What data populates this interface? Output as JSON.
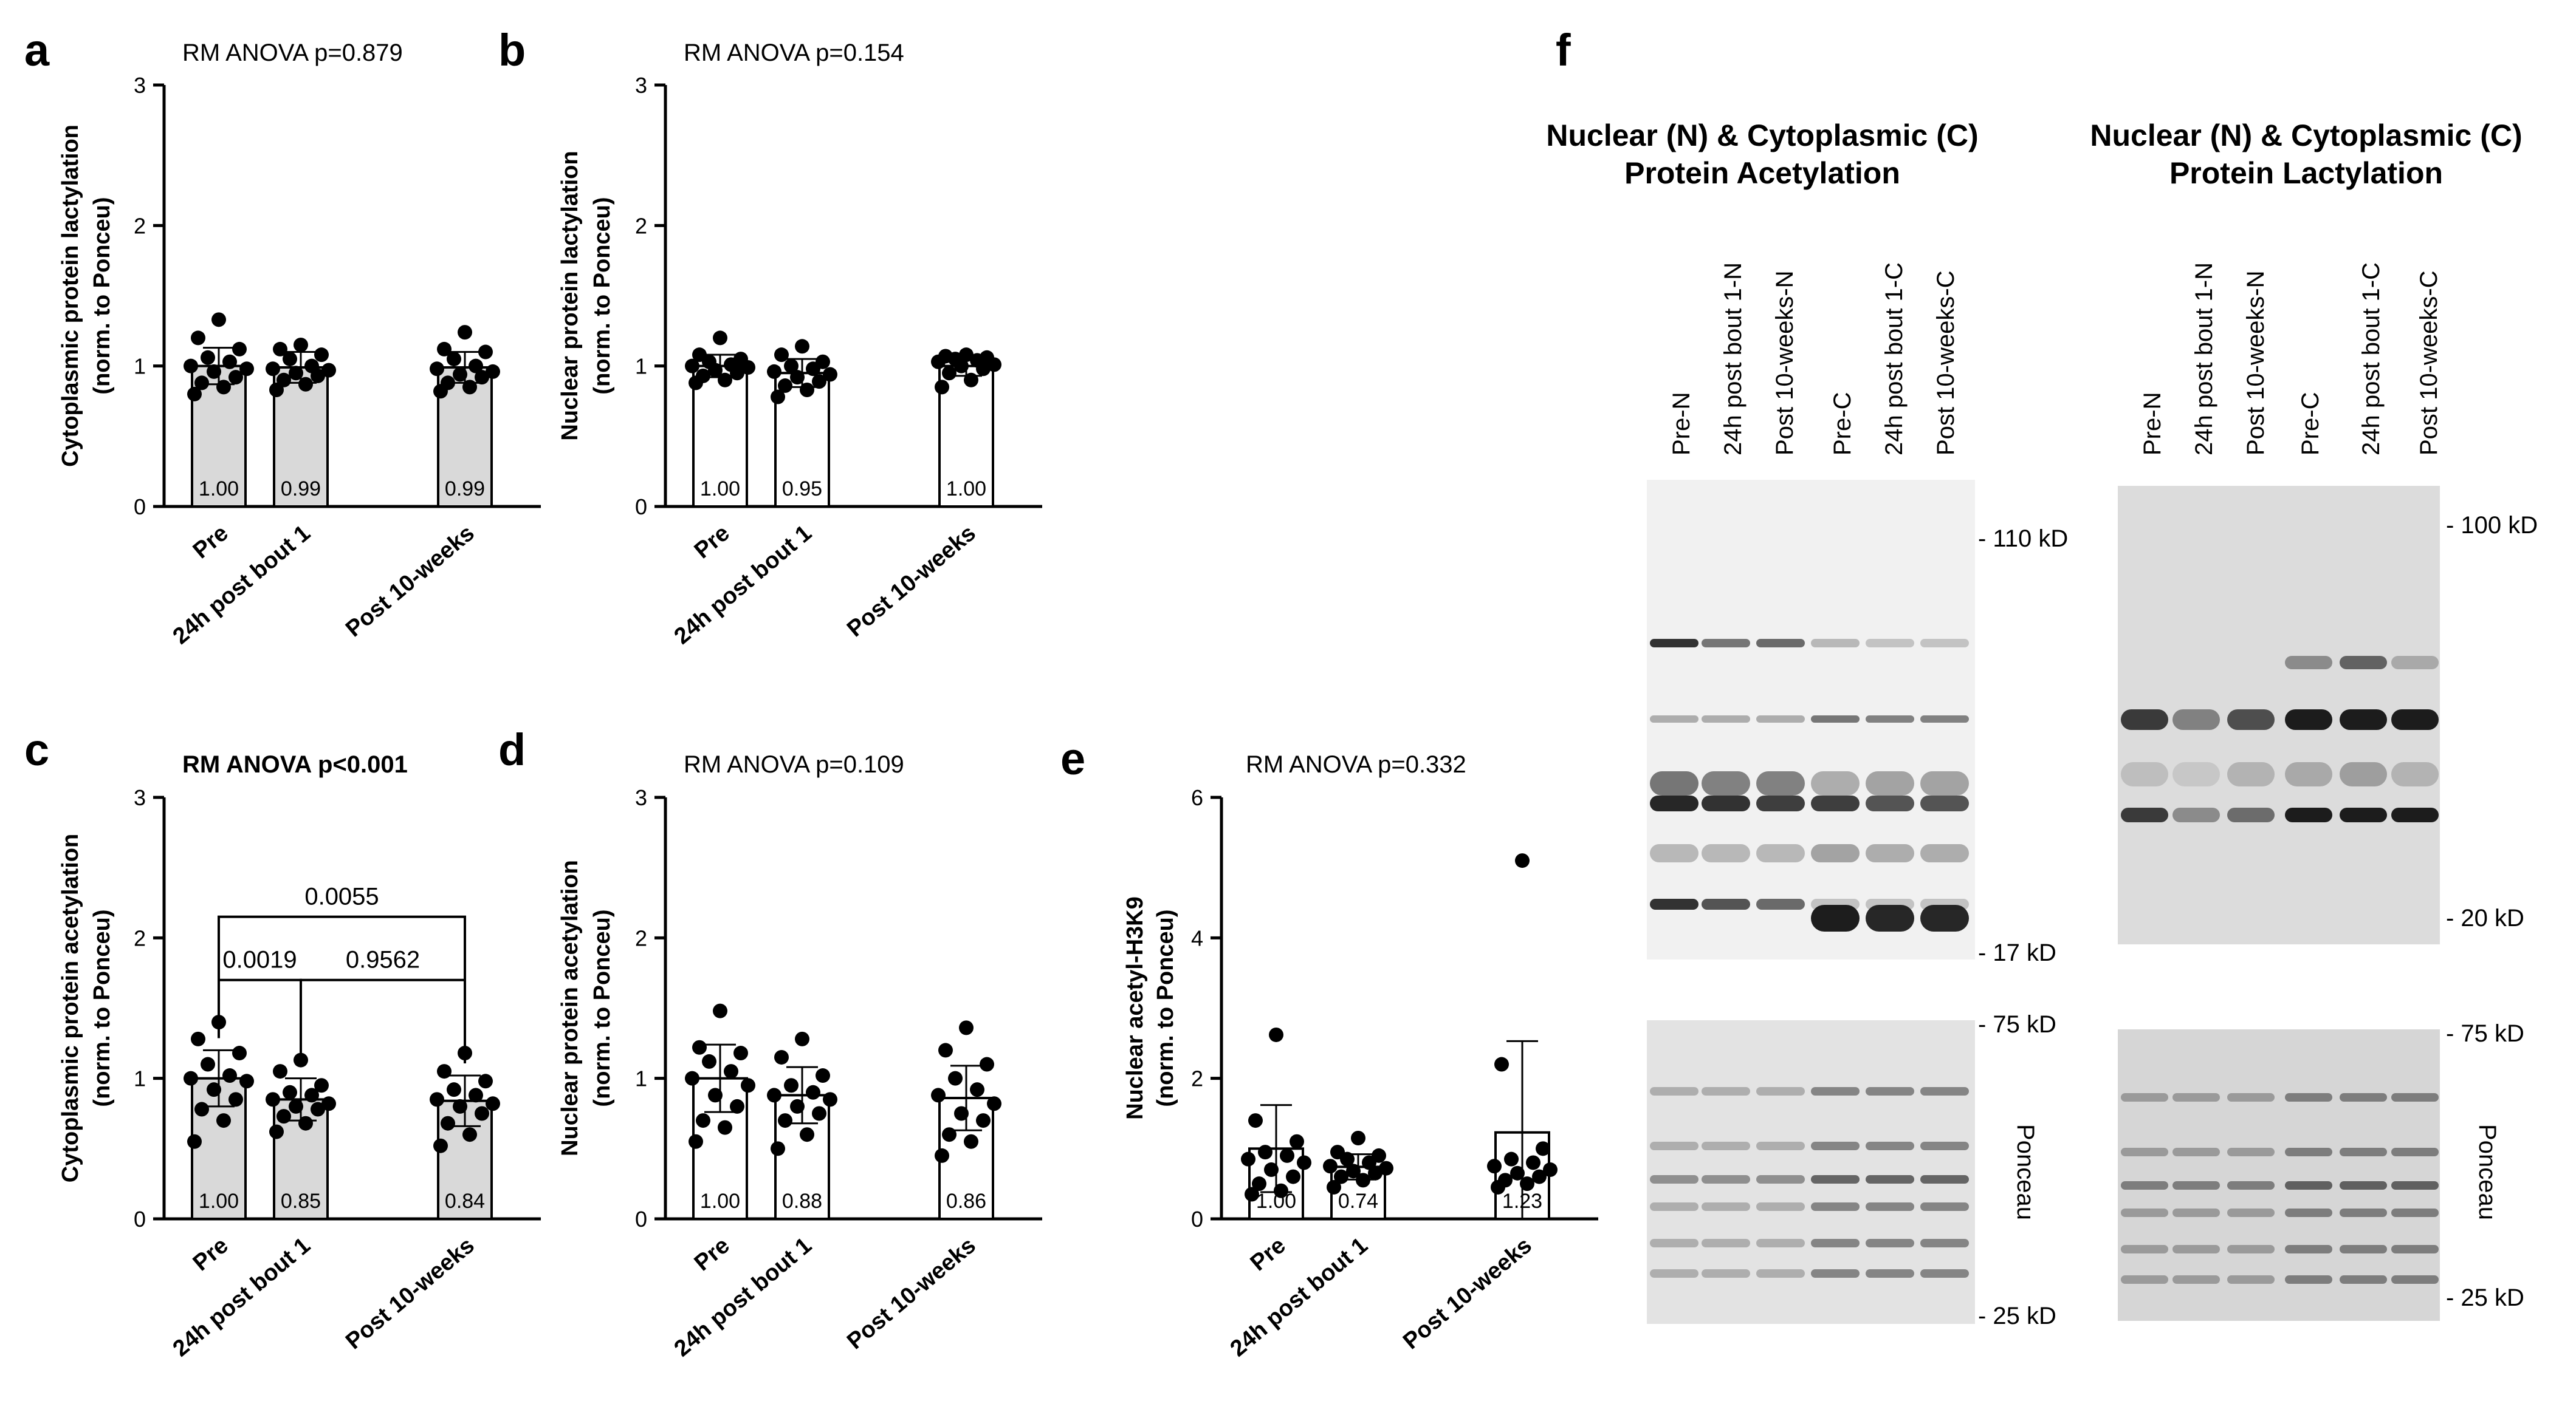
{
  "figure": {
    "panels": [
      {
        "letter": "a",
        "anova": "RM ANOVA p=0.879",
        "anova_bold": false,
        "ylabel_line1": "Cytoplasmic protein lactylation",
        "ylabel_line2": "(norm. to Ponceu)",
        "fill": "#d9d9d9",
        "ylim": [
          0,
          3
        ],
        "ticks": [
          "0",
          "1",
          "2",
          "3"
        ],
        "bar_labels": [
          "1.00",
          "0.99",
          "0.99"
        ],
        "brackets": []
      },
      {
        "letter": "b",
        "anova": "RM ANOVA p=0.154",
        "anova_bold": false,
        "ylabel_line1": "Nuclear protein lactylation",
        "ylabel_line2": "(norm. to Ponceu)",
        "fill": "#ffffff",
        "ylim": [
          0,
          3
        ],
        "ticks": [
          "0",
          "1",
          "2",
          "3"
        ],
        "bar_labels": [
          "1.00",
          "0.95",
          "1.00"
        ],
        "brackets": []
      },
      {
        "letter": "c",
        "anova": "RM ANOVA p<0.001",
        "anova_bold": true,
        "ylabel_line1": "Cytoplasmic protein acetylation",
        "ylabel_line2": "(norm. to Ponceu)",
        "fill": "#d9d9d9",
        "ylim": [
          0,
          3
        ],
        "ticks": [
          "0",
          "1",
          "2",
          "3"
        ],
        "bar_labels": [
          "1.00",
          "0.85",
          "0.84"
        ],
        "brackets": [
          {
            "from": 0,
            "to": 2,
            "y": 2.15,
            "label": "0.0055"
          },
          {
            "from": 0,
            "to": 1,
            "y": 1.7,
            "label": "0.0019"
          },
          {
            "from": 1,
            "to": 2,
            "y": 1.7,
            "label": "0.9562"
          }
        ]
      },
      {
        "letter": "d",
        "anova": "RM ANOVA p=0.109",
        "anova_bold": false,
        "ylabel_line1": "Nuclear protein acetylation",
        "ylabel_line2": "(norm. to Ponceu)",
        "fill": "#ffffff",
        "ylim": [
          0,
          3
        ],
        "ticks": [
          "0",
          "1",
          "2",
          "3"
        ],
        "bar_labels": [
          "1.00",
          "0.88",
          "0.86"
        ],
        "brackets": []
      },
      {
        "letter": "e",
        "anova": "RM ANOVA p=0.332",
        "anova_bold": false,
        "ylabel_line1": "Nuclear acetyl-H3K9",
        "ylabel_line2": "(norm. to Ponceu)",
        "fill": "#ffffff",
        "ylim": [
          0,
          6
        ],
        "ticks": [
          "0",
          "2",
          "4",
          "6"
        ],
        "bar_labels": [
          "1.00",
          "0.74",
          "1.23"
        ],
        "brackets": []
      }
    ],
    "blot": {
      "letter": "f",
      "left_title_line1": "Nuclear (N) & Cytoplasmic (C)",
      "left_title_line2": "Protein Acetylation",
      "right_title_line1": "Nuclear (N) & Cytoplasmic (C)",
      "right_title_line2": "Protein Lactylation",
      "lanes": [
        "Pre-N",
        "24h post bout 1-N",
        "Post 10-weeks-N",
        "Pre-C",
        "24h post bout 1-C",
        "Post 10-weeks-C"
      ],
      "left_markers_top": [
        "- 110 kD",
        "- 17 kD"
      ],
      "right_markers_top": [
        "- 100 kD",
        "- 20 kD"
      ],
      "markers_bottom": [
        "- 75 kD",
        "- 25 kD"
      ],
      "ponceau_label": "Ponceau"
    }
  },
  "chart_data": [
    {
      "type": "bar",
      "panel": "a",
      "title": "RM ANOVA p=0.879",
      "ylabel": "Cytoplasmic protein lactylation (norm. to Ponceu)",
      "categories": [
        "Pre",
        "24h post bout 1",
        "Post 10-weeks"
      ],
      "values": [
        1.0,
        0.99,
        0.99
      ],
      "error_sd": [
        0.13,
        0.11,
        0.11
      ],
      "ylim": [
        0,
        3
      ],
      "points": [
        [
          1.33,
          1.2,
          1.12,
          1.06,
          1.03,
          1.0,
          0.98,
          0.96,
          0.92,
          0.88,
          0.85,
          0.8
        ],
        [
          1.15,
          1.12,
          1.08,
          1.05,
          1.0,
          0.98,
          0.97,
          0.95,
          0.93,
          0.9,
          0.87,
          0.83
        ],
        [
          1.24,
          1.12,
          1.1,
          1.05,
          1.0,
          0.98,
          0.96,
          0.94,
          0.92,
          0.88,
          0.85,
          0.82
        ]
      ]
    },
    {
      "type": "bar",
      "panel": "b",
      "title": "RM ANOVA p=0.154",
      "ylabel": "Nuclear protein lactylation (norm. to Ponceu)",
      "categories": [
        "Pre",
        "24h post bout 1",
        "Post 10-weeks"
      ],
      "values": [
        1.0,
        0.95,
        1.0
      ],
      "error_sd": [
        0.08,
        0.1,
        0.07
      ],
      "ylim": [
        0,
        3
      ],
      "points": [
        [
          1.2,
          1.08,
          1.05,
          1.03,
          1.01,
          1.0,
          0.99,
          0.97,
          0.95,
          0.93,
          0.9,
          0.88
        ],
        [
          1.14,
          1.08,
          1.03,
          1.0,
          0.98,
          0.96,
          0.94,
          0.92,
          0.89,
          0.86,
          0.83,
          0.78
        ],
        [
          1.08,
          1.07,
          1.06,
          1.05,
          1.04,
          1.03,
          1.01,
          1.0,
          0.98,
          0.95,
          0.9,
          0.85
        ]
      ]
    },
    {
      "type": "bar",
      "panel": "c",
      "title": "RM ANOVA p<0.001",
      "ylabel": "Cytoplasmic protein acetylation (norm. to Ponceu)",
      "categories": [
        "Pre",
        "24h post bout 1",
        "Post 10-weeks"
      ],
      "values": [
        1.0,
        0.85,
        0.84
      ],
      "error_sd": [
        0.2,
        0.15,
        0.18
      ],
      "ylim": [
        0,
        3
      ],
      "points": [
        [
          1.4,
          1.28,
          1.18,
          1.1,
          1.02,
          1.0,
          0.98,
          0.92,
          0.85,
          0.78,
          0.7,
          0.55
        ],
        [
          1.13,
          1.05,
          0.95,
          0.9,
          0.88,
          0.85,
          0.82,
          0.8,
          0.78,
          0.73,
          0.68,
          0.62
        ],
        [
          1.18,
          1.05,
          0.98,
          0.92,
          0.88,
          0.85,
          0.82,
          0.8,
          0.75,
          0.68,
          0.6,
          0.52
        ]
      ],
      "comparisons": [
        {
          "groups": [
            "Pre",
            "24h post bout 1"
          ],
          "p": "0.0019"
        },
        {
          "groups": [
            "24h post bout 1",
            "Post 10-weeks"
          ],
          "p": "0.9562"
        },
        {
          "groups": [
            "Pre",
            "Post 10-weeks"
          ],
          "p": "0.0055"
        }
      ]
    },
    {
      "type": "bar",
      "panel": "d",
      "title": "RM ANOVA p=0.109",
      "ylabel": "Nuclear protein acetylation (norm. to Ponceu)",
      "categories": [
        "Pre",
        "24h post bout 1",
        "Post 10-weeks"
      ],
      "values": [
        1.0,
        0.88,
        0.86
      ],
      "error_sd": [
        0.24,
        0.2,
        0.23
      ],
      "ylim": [
        0,
        3
      ],
      "points": [
        [
          1.48,
          1.22,
          1.18,
          1.12,
          1.05,
          1.0,
          0.95,
          0.88,
          0.8,
          0.7,
          0.65,
          0.55
        ],
        [
          1.28,
          1.15,
          1.02,
          0.95,
          0.9,
          0.88,
          0.85,
          0.8,
          0.75,
          0.7,
          0.6,
          0.5
        ],
        [
          1.36,
          1.2,
          1.1,
          1.0,
          0.92,
          0.88,
          0.82,
          0.75,
          0.7,
          0.6,
          0.55,
          0.45
        ]
      ]
    },
    {
      "type": "bar",
      "panel": "e",
      "title": "RM ANOVA p=0.332",
      "ylabel": "Nuclear acetyl-H3K9 (norm. to Ponceu)",
      "categories": [
        "Pre",
        "24h post bout 1",
        "Post 10-weeks"
      ],
      "values": [
        1.0,
        0.74,
        1.23
      ],
      "error_sd": [
        0.62,
        0.18,
        1.3
      ],
      "ylim": [
        0,
        6
      ],
      "points": [
        [
          2.62,
          1.4,
          1.1,
          0.95,
          0.9,
          0.85,
          0.8,
          0.7,
          0.6,
          0.5,
          0.4,
          0.35
        ],
        [
          1.15,
          0.95,
          0.9,
          0.85,
          0.8,
          0.75,
          0.72,
          0.68,
          0.65,
          0.6,
          0.55,
          0.45
        ],
        [
          5.1,
          2.2,
          1.0,
          0.85,
          0.8,
          0.75,
          0.7,
          0.65,
          0.6,
          0.55,
          0.5,
          0.45
        ]
      ]
    }
  ]
}
